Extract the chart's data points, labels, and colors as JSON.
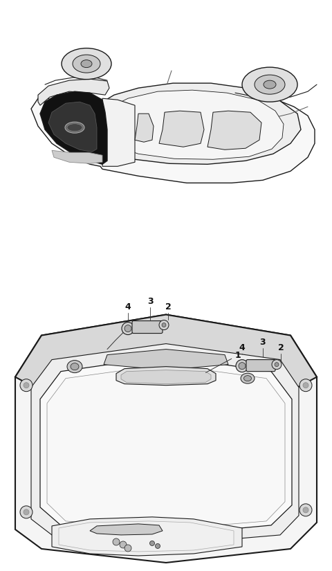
{
  "background_color": "#ffffff",
  "fig_width": 4.8,
  "fig_height": 8.25,
  "dpi": 100,
  "line_color": "#1a1a1a",
  "dark_fill": "#111111",
  "mid_fill": "#888888",
  "light_fill": "#e8e8e8",
  "very_light_fill": "#f5f5f5"
}
